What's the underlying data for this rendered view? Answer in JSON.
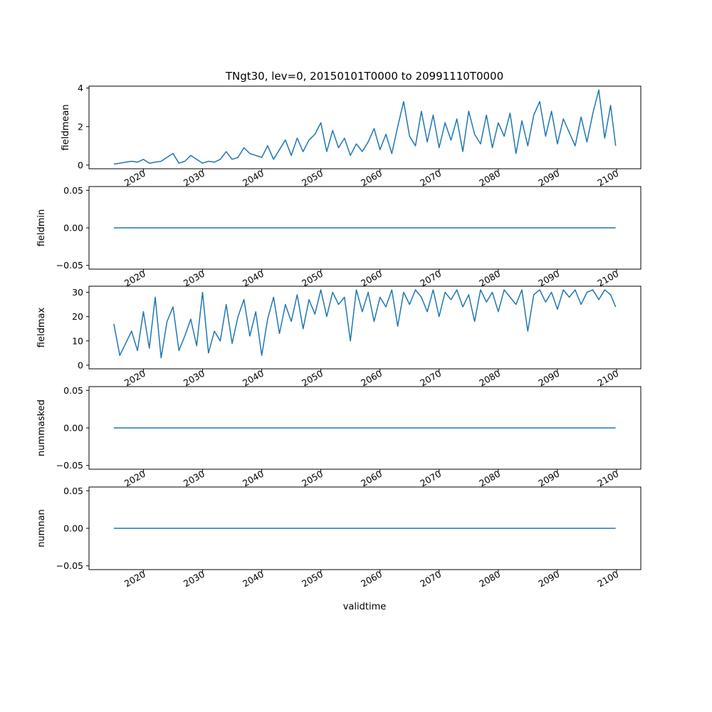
{
  "title": "TNgt30, lev=0, 20150101T0000 to 20991110T0000",
  "colors": {
    "line": "#1f77b4",
    "axis": "#000000",
    "background": "#ffffff"
  },
  "chart_data": [
    {
      "type": "line",
      "ylabel": "fieldmean",
      "ylim": [
        -0.19,
        4.1
      ],
      "yticks": [
        0,
        2,
        4
      ],
      "yticklabels": [
        "0",
        "2",
        "4"
      ],
      "x": [
        2015.0,
        2016.0,
        2017.0,
        2018.0,
        2019.0,
        2020.0,
        2021.0,
        2022.0,
        2023.0,
        2024.0,
        2025.0,
        2026.0,
        2027.0,
        2028.0,
        2029.0,
        2030.0,
        2031.0,
        2032.0,
        2033.0,
        2034.0,
        2035.0,
        2036.0,
        2037.0,
        2038.0,
        2039.0,
        2040.0,
        2041.0,
        2042.0,
        2043.0,
        2044.0,
        2045.0,
        2046.0,
        2047.0,
        2048.0,
        2049.0,
        2050.0,
        2051.0,
        2052.0,
        2053.0,
        2054.0,
        2055.0,
        2056.0,
        2057.0,
        2058.0,
        2059.0,
        2060.0,
        2061.0,
        2062.0,
        2063.0,
        2064.0,
        2065.0,
        2066.0,
        2067.0,
        2068.0,
        2069.0,
        2070.0,
        2071.0,
        2072.0,
        2073.0,
        2074.0,
        2075.0,
        2076.0,
        2077.0,
        2078.0,
        2079.0,
        2080.0,
        2081.0,
        2082.0,
        2083.0,
        2084.0,
        2085.0,
        2086.0,
        2087.0,
        2088.0,
        2089.0,
        2090.0,
        2091.0,
        2092.0,
        2093.0,
        2094.0,
        2095.0,
        2096.0,
        2097.0,
        2098.0,
        2099.0,
        2099.85
      ],
      "values": [
        0.05,
        0.1,
        0.15,
        0.2,
        0.15,
        0.3,
        0.1,
        0.15,
        0.2,
        0.4,
        0.6,
        0.1,
        0.2,
        0.5,
        0.3,
        0.1,
        0.2,
        0.15,
        0.3,
        0.7,
        0.3,
        0.4,
        0.9,
        0.6,
        0.5,
        0.4,
        1.0,
        0.3,
        0.8,
        1.3,
        0.5,
        1.4,
        0.7,
        1.3,
        1.6,
        2.2,
        0.7,
        1.8,
        0.9,
        1.4,
        0.5,
        1.1,
        0.7,
        1.2,
        1.9,
        0.8,
        1.6,
        0.6,
        2.0,
        3.3,
        1.5,
        1.0,
        2.8,
        1.2,
        2.6,
        0.9,
        2.2,
        1.3,
        2.4,
        0.7,
        2.8,
        1.6,
        1.1,
        2.6,
        0.9,
        2.2,
        1.5,
        2.7,
        0.6,
        2.3,
        1.0,
        2.6,
        3.3,
        1.5,
        2.8,
        1.1,
        2.4,
        1.7,
        1.0,
        2.5,
        1.2,
        2.7,
        3.9,
        1.4,
        3.1,
        1.0
      ]
    },
    {
      "type": "line",
      "ylabel": "fieldmin",
      "ylim": [
        -0.055,
        0.055
      ],
      "yticks": [
        -0.05,
        0.0,
        0.05
      ],
      "yticklabels": [
        "−0.05",
        "0.00",
        "0.05"
      ],
      "x": [
        2015.0,
        2099.85
      ],
      "values": [
        0.0,
        0.0
      ]
    },
    {
      "type": "line",
      "ylabel": "fieldmax",
      "ylim": [
        -1.5,
        32.5
      ],
      "yticks": [
        0,
        10,
        20,
        30
      ],
      "yticklabels": [
        "0",
        "10",
        "20",
        "30"
      ],
      "x": [
        2015.0,
        2016.0,
        2017.0,
        2018.0,
        2019.0,
        2020.0,
        2021.0,
        2022.0,
        2023.0,
        2024.0,
        2025.0,
        2026.0,
        2027.0,
        2028.0,
        2029.0,
        2030.0,
        2031.0,
        2032.0,
        2033.0,
        2034.0,
        2035.0,
        2036.0,
        2037.0,
        2038.0,
        2039.0,
        2040.0,
        2041.0,
        2042.0,
        2043.0,
        2044.0,
        2045.0,
        2046.0,
        2047.0,
        2048.0,
        2049.0,
        2050.0,
        2051.0,
        2052.0,
        2053.0,
        2054.0,
        2055.0,
        2056.0,
        2057.0,
        2058.0,
        2059.0,
        2060.0,
        2061.0,
        2062.0,
        2063.0,
        2064.0,
        2065.0,
        2066.0,
        2067.0,
        2068.0,
        2069.0,
        2070.0,
        2071.0,
        2072.0,
        2073.0,
        2074.0,
        2075.0,
        2076.0,
        2077.0,
        2078.0,
        2079.0,
        2080.0,
        2081.0,
        2082.0,
        2083.0,
        2084.0,
        2085.0,
        2086.0,
        2087.0,
        2088.0,
        2089.0,
        2090.0,
        2091.0,
        2092.0,
        2093.0,
        2094.0,
        2095.0,
        2096.0,
        2097.0,
        2098.0,
        2099.0,
        2099.85
      ],
      "values": [
        17,
        4,
        9,
        14,
        6,
        22,
        7,
        28,
        3,
        18,
        24,
        6,
        12,
        19,
        8,
        30,
        5,
        14,
        10,
        25,
        9,
        20,
        27,
        12,
        22,
        4,
        19,
        28,
        13,
        25,
        18,
        29,
        15,
        27,
        21,
        31,
        20,
        30,
        25,
        28,
        10,
        31,
        22,
        30,
        18,
        28,
        24,
        31,
        16,
        30,
        25,
        31,
        28,
        22,
        31,
        20,
        30,
        27,
        31,
        24,
        29,
        18,
        31,
        26,
        30,
        22,
        31,
        28,
        25,
        31,
        14,
        29,
        31,
        26,
        30,
        23,
        31,
        28,
        31,
        25,
        30,
        31,
        27,
        31,
        29,
        24
      ]
    },
    {
      "type": "line",
      "ylabel": "nummasked",
      "ylim": [
        -0.055,
        0.055
      ],
      "yticks": [
        -0.05,
        0.0,
        0.05
      ],
      "yticklabels": [
        "−0.05",
        "0.00",
        "0.05"
      ],
      "x": [
        2015.0,
        2099.85
      ],
      "values": [
        0.0,
        0.0
      ]
    },
    {
      "type": "line",
      "ylabel": "numnan",
      "ylim": [
        -0.055,
        0.055
      ],
      "yticks": [
        -0.05,
        0.0,
        0.05
      ],
      "yticklabels": [
        "−0.05",
        "0.00",
        "0.05"
      ],
      "x": [
        2015.0,
        2099.85
      ],
      "values": [
        0.0,
        0.0
      ]
    }
  ],
  "xaxis": {
    "xlabel": "validtime",
    "xlim": [
      2010.8,
      2104.1
    ],
    "ticks": [
      2020,
      2030,
      2040,
      2050,
      2060,
      2070,
      2080,
      2090,
      2100
    ],
    "ticklabels": [
      "2020",
      "2030",
      "2040",
      "2050",
      "2060",
      "2070",
      "2080",
      "2090",
      "2100"
    ]
  }
}
